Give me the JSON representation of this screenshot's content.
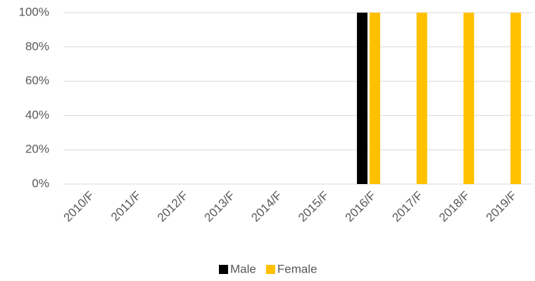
{
  "chart_data": {
    "type": "bar",
    "categories": [
      "2010/F",
      "2011/F",
      "2012/F",
      "2013/F",
      "2014/F",
      "2015/F",
      "2016/F",
      "2017/F",
      "2018/F",
      "2019/F"
    ],
    "series": [
      {
        "name": "Male",
        "color": "#000000",
        "values": [
          0,
          0,
          0,
          0,
          0,
          0,
          100,
          0,
          0,
          0
        ]
      },
      {
        "name": "Female",
        "color": "#ffc000",
        "values": [
          0,
          0,
          0,
          0,
          0,
          0,
          100,
          100,
          100,
          100
        ]
      }
    ],
    "ylim": [
      0,
      100
    ],
    "yticks": [
      {
        "value": 0,
        "label": "0%"
      },
      {
        "value": 20,
        "label": "20%"
      },
      {
        "value": 40,
        "label": "40%"
      },
      {
        "value": 60,
        "label": "60%"
      },
      {
        "value": 80,
        "label": "80%"
      },
      {
        "value": 100,
        "label": "100%"
      }
    ],
    "grid": true,
    "legend": "bottom"
  }
}
